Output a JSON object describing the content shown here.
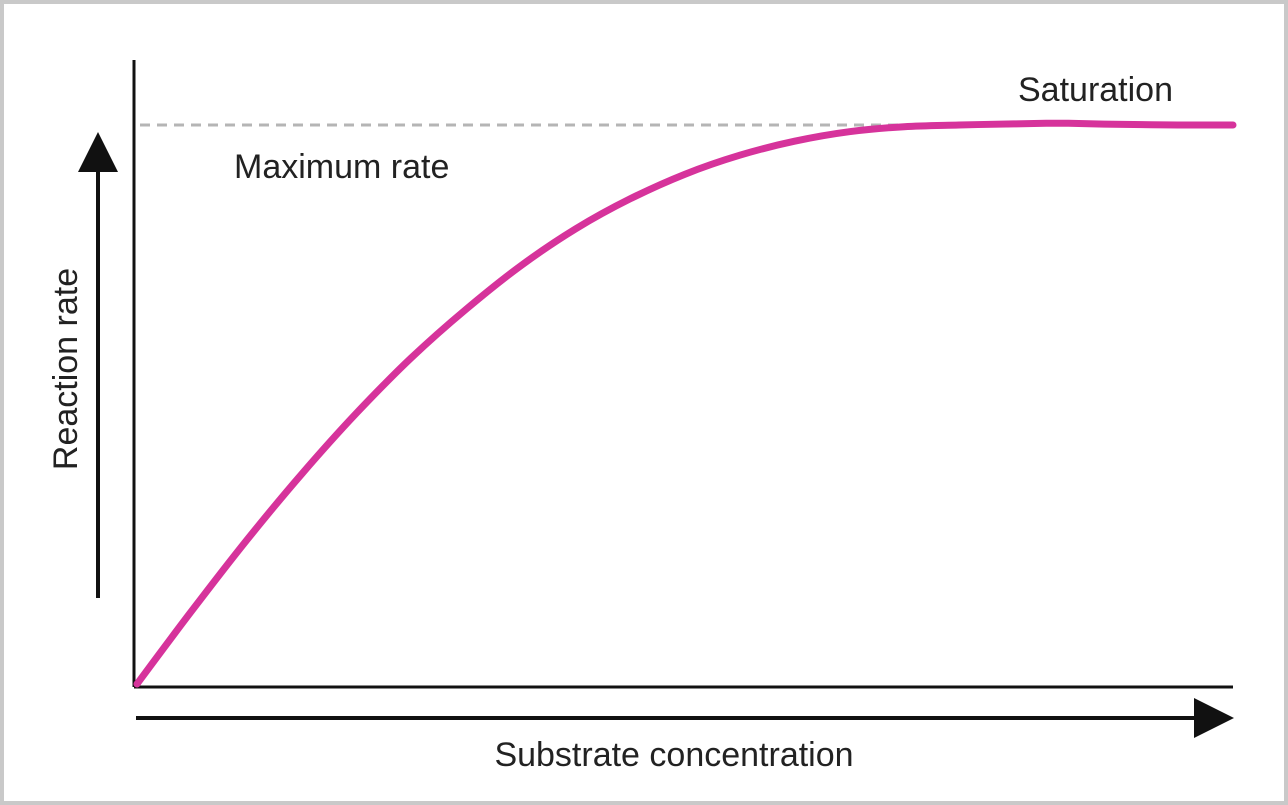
{
  "chart_data": {
    "type": "line",
    "xlabel": "Substrate concentration",
    "ylabel": "Reaction rate",
    "xlim": [
      0,
      1
    ],
    "ylim": [
      0,
      1
    ],
    "grid": false,
    "legend": "none",
    "series": [
      {
        "color": "#d6339b",
        "x": [
          0,
          0.05,
          0.1,
          0.15,
          0.2,
          0.25,
          0.3,
          0.35,
          0.4,
          0.45,
          0.5,
          0.55,
          0.6,
          0.65,
          0.7,
          0.75,
          0.8,
          0.83,
          0.85,
          0.9,
          0.95,
          1.0
        ],
        "y": [
          0,
          0.131,
          0.257,
          0.375,
          0.484,
          0.583,
          0.67,
          0.748,
          0.814,
          0.868,
          0.912,
          0.946,
          0.971,
          0.988,
          0.997,
          1.0,
          1.002,
          1.003,
          1.003,
          1.001,
          1.0,
          1.0
        ]
      }
    ],
    "reference_line": {
      "y": 1.0,
      "label": "Maximum rate",
      "color": "#b5b5b5"
    },
    "annotations": [
      {
        "text": "Saturation"
      }
    ]
  }
}
